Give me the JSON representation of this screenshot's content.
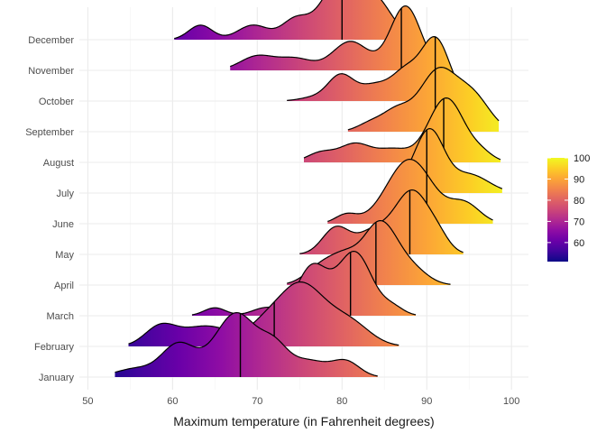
{
  "chart_data": {
    "type": "ridgeline",
    "xlabel": "Maximum temperature (in Fahrenheit degrees)",
    "ylabel": "",
    "xlim": [
      49,
      102
    ],
    "x_ticks": [
      50,
      60,
      70,
      80,
      90,
      100
    ],
    "grid": true,
    "color_scale": "plasma",
    "colorbar": {
      "range": [
        51,
        100
      ],
      "ticks": [
        60,
        70,
        80,
        90,
        100
      ],
      "position": "right"
    },
    "scale": 2.1,
    "series": [
      {
        "name": "January",
        "range": [
          53.2,
          84.2
        ],
        "median": 68,
        "peaks": [
          [
            55.5,
            2.2,
            0.1
          ],
          [
            60.7,
            2.0,
            0.4
          ],
          [
            67.5,
            2.5,
            0.78
          ],
          [
            72.0,
            1.6,
            0.3
          ],
          [
            76.0,
            2.3,
            0.2
          ],
          [
            80.5,
            1.6,
            0.18
          ]
        ]
      },
      {
        "name": "February",
        "range": [
          54.8,
          86.7
        ],
        "median": 72,
        "peaks": [
          [
            58.5,
            1.8,
            0.22
          ],
          [
            64.0,
            3.2,
            0.25
          ],
          [
            70.5,
            1.6,
            0.1
          ],
          [
            75.0,
            3.0,
            0.78
          ],
          [
            81.0,
            2.4,
            0.26
          ]
        ]
      },
      {
        "name": "March",
        "range": [
          62.3,
          88.7
        ],
        "median": 81,
        "peaks": [
          [
            65.0,
            1.3,
            0.1
          ],
          [
            71.0,
            1.6,
            0.1
          ],
          [
            76.5,
            1.8,
            0.62
          ],
          [
            81.5,
            2.0,
            0.8
          ],
          [
            86.0,
            1.3,
            0.1
          ]
        ]
      },
      {
        "name": "April",
        "range": [
          73.5,
          92.8
        ],
        "median": 84,
        "peaks": [
          [
            78.0,
            2.0,
            0.35
          ],
          [
            80.5,
            1.5,
            0.25
          ],
          [
            84.5,
            2.1,
            1.0
          ],
          [
            88.5,
            1.8,
            0.2
          ]
        ]
      },
      {
        "name": "May",
        "range": [
          75.0,
          94.3
        ],
        "median": 88,
        "peaks": [
          [
            79.3,
            1.6,
            0.42
          ],
          [
            83.5,
            1.8,
            0.32
          ],
          [
            88.3,
            2.2,
            1.0
          ],
          [
            91.5,
            1.2,
            0.12
          ]
        ]
      },
      {
        "name": "June",
        "range": [
          78.3,
          97.8
        ],
        "median": 90,
        "peaks": [
          [
            80.5,
            1.3,
            0.14
          ],
          [
            88.0,
            2.7,
            1.0
          ],
          [
            94.5,
            1.8,
            0.3
          ]
        ]
      },
      {
        "name": "July",
        "range": [
          85.5,
          98.9
        ],
        "median": 90,
        "peaks": [
          [
            87.5,
            1.3,
            0.1
          ],
          [
            90.3,
            1.7,
            1.0
          ],
          [
            95.0,
            2.3,
            0.3
          ]
        ]
      },
      {
        "name": "August",
        "range": [
          75.5,
          98.7
        ],
        "median": 92,
        "peaks": [
          [
            77.5,
            1.6,
            0.15
          ],
          [
            81.5,
            1.8,
            0.28
          ],
          [
            86.0,
            2.0,
            0.2
          ],
          [
            92.3,
            2.1,
            1.0
          ],
          [
            96.5,
            1.4,
            0.12
          ]
        ]
      },
      {
        "name": "September",
        "range": [
          80.7,
          98.5
        ],
        "median": 91,
        "peaks": [
          [
            83.5,
            1.6,
            0.15
          ],
          [
            86.5,
            1.6,
            0.32
          ],
          [
            91.3,
            2.2,
            1.0
          ],
          [
            95.5,
            2.0,
            0.55
          ]
        ]
      },
      {
        "name": "October",
        "range": [
          73.5,
          95.0
        ],
        "median": 91,
        "peaks": [
          [
            76.5,
            1.6,
            0.05
          ],
          [
            79.8,
            1.5,
            0.38
          ],
          [
            84.0,
            2.0,
            0.25
          ],
          [
            87.5,
            1.5,
            0.38
          ],
          [
            91.0,
            1.7,
            0.95
          ]
        ]
      },
      {
        "name": "November",
        "range": [
          66.8,
          91.0
        ],
        "median": 87,
        "peaks": [
          [
            70.0,
            2.0,
            0.22
          ],
          [
            74.5,
            2.0,
            0.18
          ],
          [
            81.0,
            2.1,
            0.45
          ],
          [
            87.5,
            1.8,
            1.0
          ]
        ]
      },
      {
        "name": "December",
        "range": [
          60.2,
          89.1
        ],
        "median": 80,
        "peaks": [
          [
            63.3,
            1.4,
            0.22
          ],
          [
            69.5,
            1.8,
            0.22
          ],
          [
            74.5,
            1.6,
            0.3
          ],
          [
            79.8,
            2.2,
            0.9
          ],
          [
            84.0,
            2.0,
            0.55
          ]
        ]
      }
    ]
  }
}
